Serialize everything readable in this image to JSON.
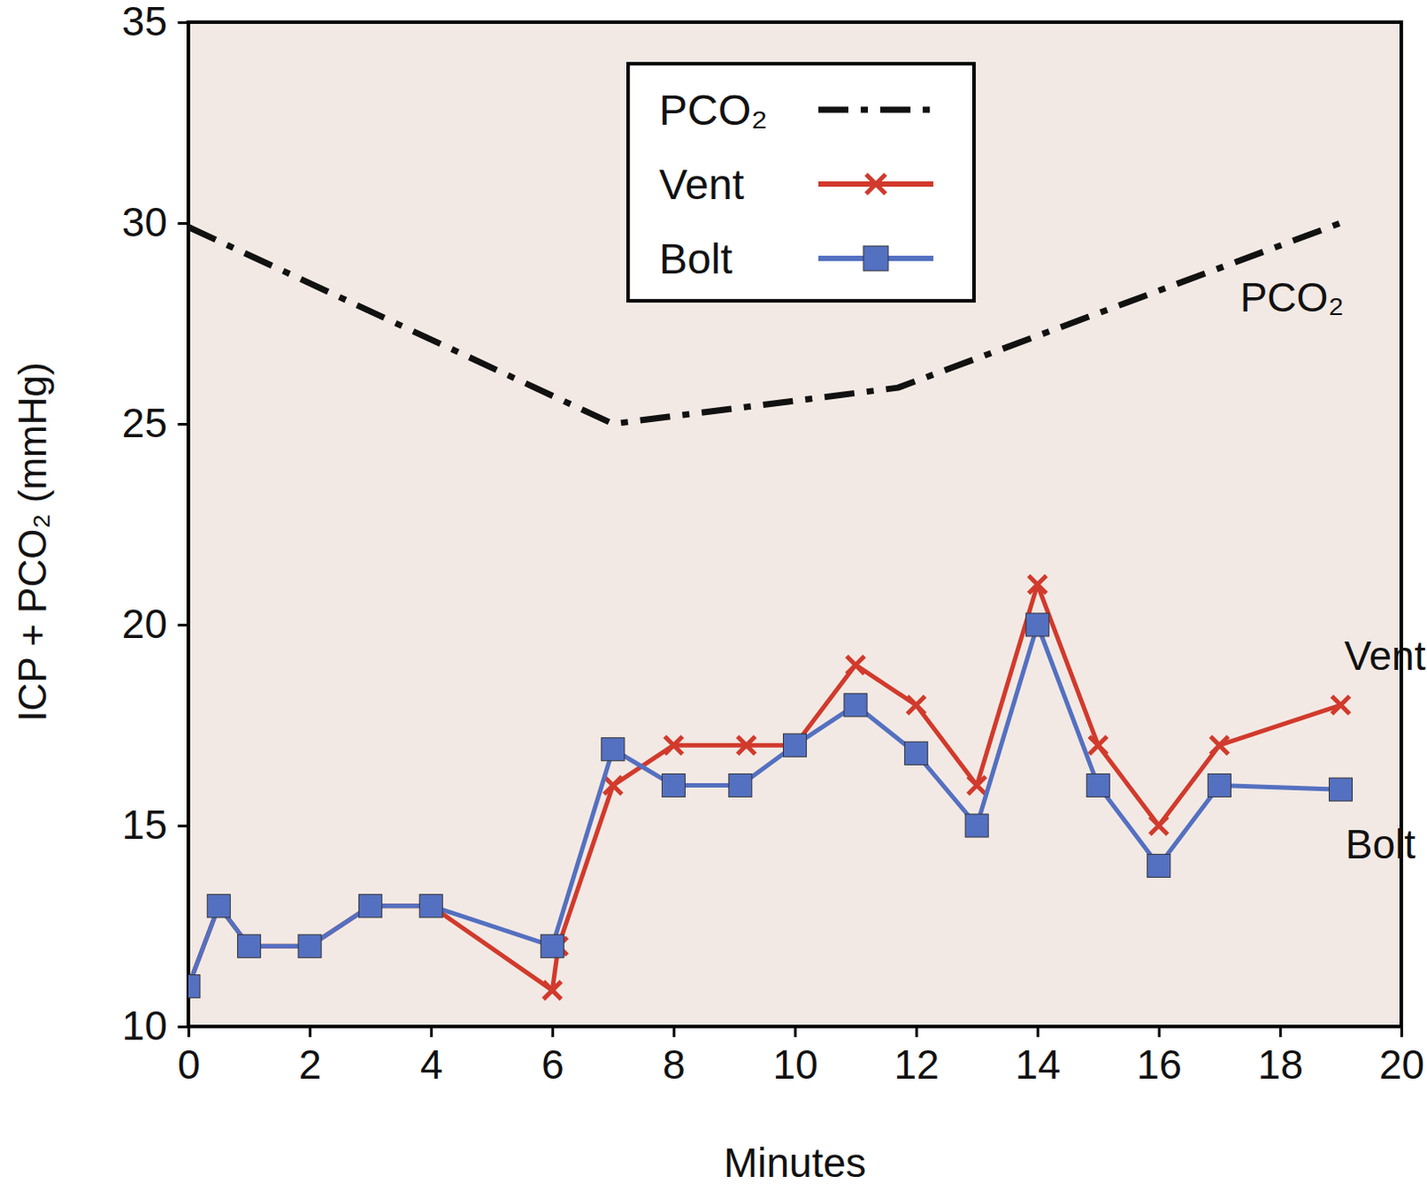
{
  "chart_data": {
    "type": "line",
    "xlabel": "Minutes",
    "ylabel": "ICP + PCO₂ (mmHg)",
    "xlim": [
      0,
      20
    ],
    "xticks": [
      0,
      2,
      4,
      6,
      8,
      10,
      12,
      14,
      16,
      18,
      20
    ],
    "ylim": [
      10,
      35
    ],
    "yticks": [
      10,
      15,
      20,
      25,
      30,
      35
    ],
    "grid": false,
    "legend": "top",
    "series": [
      {
        "name": "PCO₂",
        "color": "#111111",
        "line_style": "dashdot",
        "marker": "none",
        "x": [
          0,
          7,
          11.7,
          19
        ],
        "values": [
          29.9,
          25,
          25.9,
          30
        ]
      },
      {
        "name": "Vent",
        "color": "#d13a2c",
        "line_style": "solid",
        "marker": "x",
        "x": [
          0,
          0.5,
          1,
          2,
          3,
          4,
          6,
          6.1,
          7,
          8,
          9.2,
          10,
          11,
          12,
          13,
          14,
          15,
          16,
          17,
          19
        ],
        "values": [
          11,
          13,
          12,
          12,
          13,
          13,
          10.9,
          12,
          16,
          17,
          17,
          17,
          19,
          18,
          16,
          21,
          17,
          15,
          17,
          18
        ]
      },
      {
        "name": "Bolt",
        "color": "#5470c1",
        "line_style": "solid",
        "marker": "square",
        "x": [
          0,
          0.5,
          1,
          2,
          3,
          4,
          6,
          7,
          8,
          9.1,
          10,
          11,
          12,
          13,
          14,
          15,
          16,
          17,
          19
        ],
        "values": [
          11,
          13,
          12,
          12,
          13,
          13,
          12,
          16.9,
          16,
          16,
          17,
          18,
          16.8,
          15,
          20,
          16,
          14,
          16,
          15.9
        ]
      }
    ],
    "annotations": [
      "PCO₂",
      "Vent",
      "Bolt"
    ]
  }
}
